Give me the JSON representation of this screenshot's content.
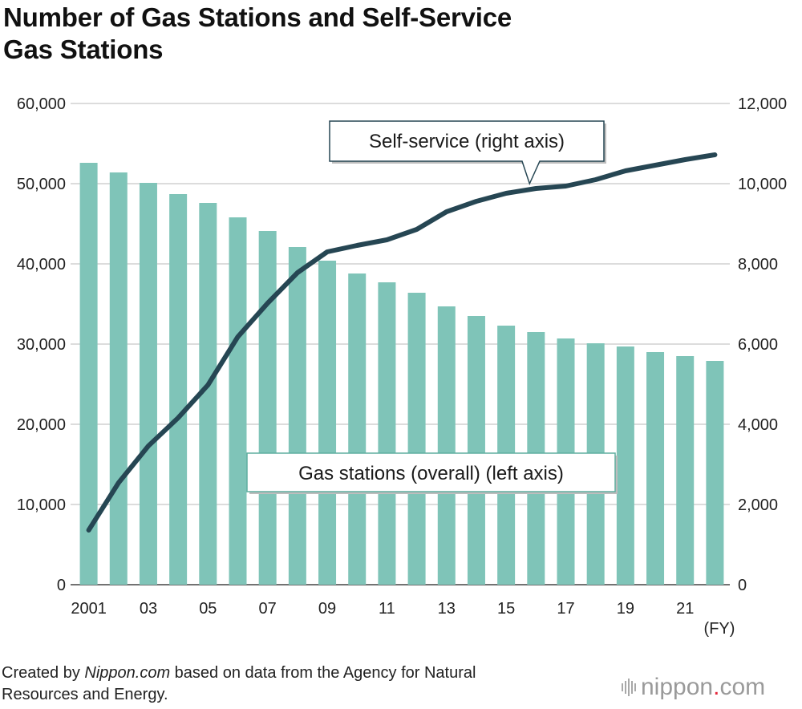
{
  "title_line1": "Number of Gas Stations and Self-Service",
  "title_line2": "Gas Stations",
  "source": {
    "prefix": "Created by ",
    "brand": "Nippon.com",
    "suffix": " based on data from the Agency for Natural",
    "line2": "Resources and Energy."
  },
  "logo": {
    "text_main": "nippon",
    "text_dot": ".",
    "text_tail": "com",
    "accent_color": "#e4283c"
  },
  "chart_data": {
    "type": "bar+line",
    "title": "Number of Gas Stations and Self-Service Gas Stations",
    "x": [
      "2001",
      "02",
      "03",
      "04",
      "05",
      "06",
      "07",
      "08",
      "09",
      "10",
      "11",
      "12",
      "13",
      "14",
      "15",
      "16",
      "17",
      "18",
      "19",
      "20",
      "21",
      "22"
    ],
    "x_tick_labels": [
      "2001",
      "03",
      "05",
      "07",
      "09",
      "11",
      "13",
      "15",
      "17",
      "19",
      "21"
    ],
    "x_tick_indices": [
      0,
      2,
      4,
      6,
      8,
      10,
      12,
      14,
      16,
      18,
      20
    ],
    "xlabel": "(FY)",
    "series": [
      {
        "name": "Gas stations (overall) (left axis)",
        "type": "bar",
        "axis": "left",
        "color": "#7fc4b8",
        "values": [
          52600,
          51400,
          50100,
          48700,
          47600,
          45800,
          44100,
          42100,
          40400,
          38800,
          37700,
          36400,
          34700,
          33500,
          32300,
          31500,
          30700,
          30100,
          29700,
          29000,
          28500,
          27900
        ]
      },
      {
        "name": "Self-service (right axis)",
        "type": "line",
        "axis": "right",
        "color": "#264653",
        "values": [
          1360,
          2540,
          3460,
          4160,
          4980,
          6180,
          7020,
          7780,
          8300,
          8460,
          8600,
          8860,
          9300,
          9560,
          9760,
          9880,
          9940,
          10100,
          10320,
          10460,
          10600,
          10720
        ]
      }
    ],
    "left_axis": {
      "ylim": [
        0,
        60000
      ],
      "ticks": [
        0,
        10000,
        20000,
        30000,
        40000,
        50000,
        60000
      ],
      "tick_labels": [
        "0",
        "10,000",
        "20,000",
        "30,000",
        "40,000",
        "50,000",
        "60,000"
      ]
    },
    "right_axis": {
      "ylim": [
        0,
        12000
      ],
      "ticks": [
        0,
        2000,
        4000,
        6000,
        8000,
        10000,
        12000
      ],
      "tick_labels": [
        "0",
        "2,000",
        "4,000",
        "6,000",
        "8,000",
        "10,000",
        "12,000"
      ]
    },
    "grid": true,
    "annotations": [
      {
        "text": "Self-service (right axis)",
        "target_series": "line",
        "pointer_index": 15
      },
      {
        "text": "Gas stations (overall) (left axis)",
        "target_series": "bar"
      }
    ]
  }
}
